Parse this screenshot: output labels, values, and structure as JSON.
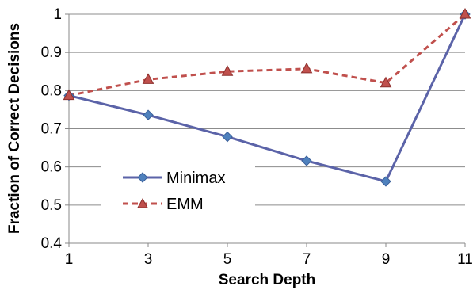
{
  "chart_data": {
    "type": "line",
    "xlabel": "Search Depth",
    "ylabel": "Fraction of Correct Decisions",
    "x": [
      1,
      3,
      5,
      7,
      9,
      11
    ],
    "x_ticks": [
      "1",
      "3",
      "5",
      "7",
      "9",
      "11"
    ],
    "ylim": [
      0.4,
      1.0
    ],
    "y_ticks": [
      "0.4",
      "0.5",
      "0.6",
      "0.7",
      "0.8",
      "0.9",
      "1"
    ],
    "grid": "horizontal",
    "legend_position": "bottom-left",
    "series": [
      {
        "name": "Minimax",
        "values": [
          0.787,
          0.736,
          0.679,
          0.616,
          0.562,
          1.0
        ],
        "color": "#5B63A8",
        "line_style": "solid",
        "marker": "diamond"
      },
      {
        "name": "EMM",
        "values": [
          0.787,
          0.829,
          0.85,
          0.857,
          0.82,
          1.0
        ],
        "color": "#C0504D",
        "line_style": "dashed",
        "marker": "triangle"
      }
    ]
  }
}
